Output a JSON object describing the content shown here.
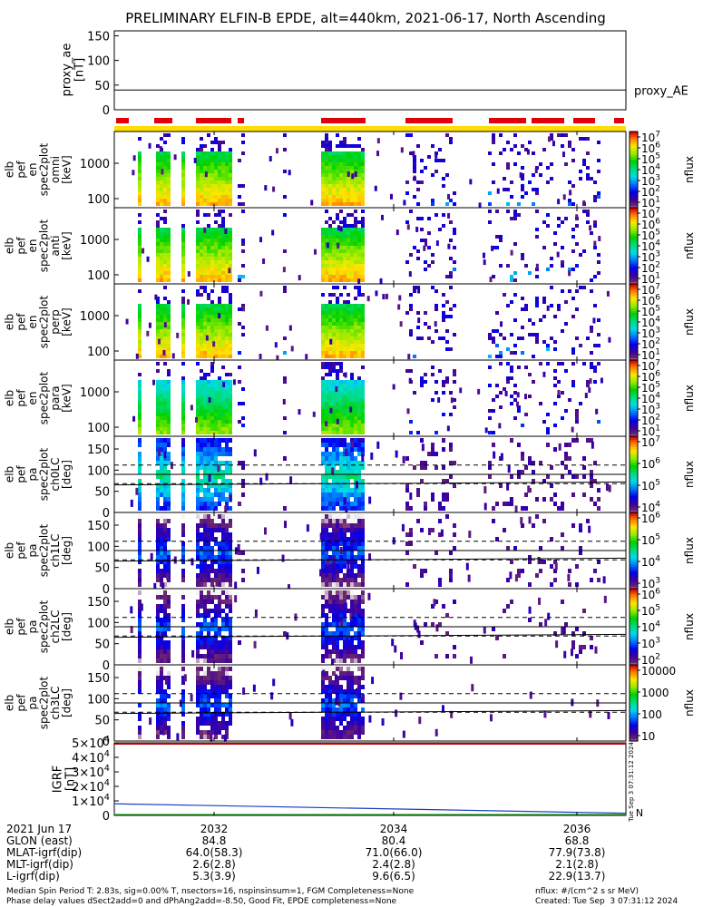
{
  "chart_data": {
    "type": "heatmap",
    "title": "PRELIMINARY ELFIN-B EPDE, alt=440km, 2021-06-17, North Ascending",
    "x_ticks": [
      "2032",
      "2034",
      "2036"
    ],
    "proxy_ae": {
      "ylabel": "proxy_ae\n[nT]",
      "legend": "proxy_AE",
      "y_ticks": [
        "150",
        "100",
        "50",
        "0"
      ],
      "ylim": [
        0,
        160
      ],
      "value": 40
    },
    "spectrogram_panels": [
      {
        "ylabel": "elb\npef\nen\nspec2plot\nomni\n[keV]",
        "y_ticks": [
          "1000",
          "100"
        ],
        "cbar_label": "nflux",
        "cbar_ticks": [
          "10^7",
          "10^6",
          "10^5",
          "10^4",
          "10^3",
          "10^2",
          "10^1"
        ],
        "kind": "energy"
      },
      {
        "ylabel": "elb\npef\nen\nspec2plot\nanti\n[keV]",
        "y_ticks": [
          "1000",
          "100"
        ],
        "cbar_label": "nflux",
        "cbar_ticks": [
          "10^7",
          "10^6",
          "10^5",
          "10^4",
          "10^3",
          "10^2",
          "10^1"
        ],
        "kind": "energy"
      },
      {
        "ylabel": "elb\npef\nen\nspec2plot\nperp\n[keV]",
        "y_ticks": [
          "1000",
          "100"
        ],
        "cbar_label": "nflux",
        "cbar_ticks": [
          "10^7",
          "10^6",
          "10^5",
          "10^4",
          "10^3",
          "10^2",
          "10^1"
        ],
        "kind": "energy"
      },
      {
        "ylabel": "elb\npef\nen\nspec2plot\npara\n[keV]",
        "y_ticks": [
          "1000",
          "100"
        ],
        "cbar_label": "nflux",
        "cbar_ticks": [
          "10^7",
          "10^6",
          "10^5",
          "10^4",
          "10^3",
          "10^2",
          "10^1"
        ],
        "kind": "energy"
      },
      {
        "ylabel": "elb\npef\npa\nspec2plot\nch0LC\n[deg]",
        "y_ticks": [
          "150",
          "100",
          "50",
          "0"
        ],
        "cbar_label": "nflux",
        "cbar_ticks": [
          "10^7",
          "10^6",
          "10^5",
          "10^4"
        ],
        "kind": "pitch"
      },
      {
        "ylabel": "elb\npef\npa\nspec2plot\nch1LC\n[deg]",
        "y_ticks": [
          "150",
          "100",
          "50",
          "0"
        ],
        "cbar_label": "nflux",
        "cbar_ticks": [
          "10^6",
          "10^5",
          "10^4",
          "10^3"
        ],
        "kind": "pitch"
      },
      {
        "ylabel": "elb\npef\npa\nspec2plot\nch2LC\n[deg]",
        "y_ticks": [
          "150",
          "100",
          "50",
          "0"
        ],
        "cbar_label": "nflux",
        "cbar_ticks": [
          "10^6",
          "10^5",
          "10^4",
          "10^3",
          "10^2"
        ],
        "kind": "pitch"
      },
      {
        "ylabel": "elb\npef\npa\nspec2plot\nch3LC\n[deg]",
        "y_ticks": [
          "150",
          "100",
          "50",
          "0"
        ],
        "cbar_label": "nflux",
        "cbar_ticks": [
          "10000",
          "1000",
          "100",
          "10"
        ],
        "kind": "pitch"
      }
    ],
    "igrf": {
      "ylabel": "IGRF\n[nT]",
      "y_ticks": [
        "5×10^4",
        "4×10^4",
        "3×10^4",
        "2×10^4",
        "1×10^4",
        "0"
      ],
      "ylim": [
        0,
        50000
      ],
      "values_start": [
        8000,
        0
      ],
      "values_end": [
        1500,
        0
      ],
      "side_label": "N",
      "created_vertical": "Tue Sep  3 07:31:12 2024"
    }
  },
  "footer": {
    "rows": [
      {
        "label": "2021 Jun 17",
        "values": [
          "2032",
          "2034",
          "2036"
        ]
      },
      {
        "label": "GLON (east)",
        "values": [
          "84.8",
          "80.4",
          "68.8"
        ]
      },
      {
        "label": "MLAT-igrf(dip)",
        "values": [
          "64.0(58.3)",
          "71.0(66.0)",
          "77.9(73.8)"
        ]
      },
      {
        "label": "MLT-igrf(dip)",
        "values": [
          "2.6(2.8)",
          "2.4(2.8)",
          "2.1(2.8)"
        ]
      },
      {
        "label": "L-igrf(dip)",
        "values": [
          "5.3(3.9)",
          "9.6(6.5)",
          "22.9(13.7)"
        ]
      }
    ],
    "note_line1": "Median Spin Period T: 2.83s, sig=0.00% T, nsectors=16, nspinsinsum=1, FGM Completeness=None",
    "note_line2": "Phase delay values dSect2add=0 and dPhAng2add=-8.50, Good Fit, EPDE completeness=None",
    "units": "nflux: #/(cm^2 s sr MeV)",
    "created": "Created: Tue Sep  3 07:31:12 2024"
  }
}
